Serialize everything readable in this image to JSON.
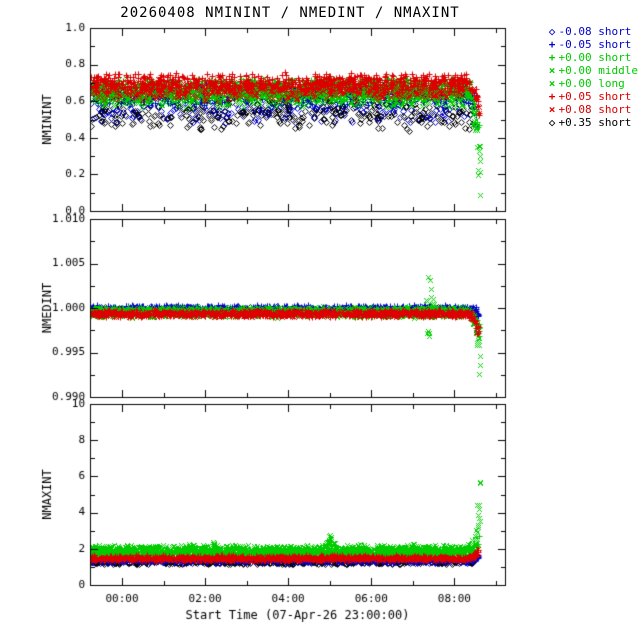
{
  "title": "20260408 NMININT / NMEDINT / NMAXINT",
  "axes": {
    "xlim": [
      -0.77,
      9.22
    ],
    "xticks": [
      0,
      2,
      4,
      6,
      8
    ],
    "xtick_labels": [
      "00:00",
      "02:00",
      "04:00",
      "06:00",
      "08:00"
    ],
    "xminor_step": 1,
    "xlabel": "Start Time (07-Apr-26 23:00:00)"
  },
  "legend": {
    "items": [
      {
        "label": "-0.08 short",
        "color": "#0000cc",
        "symbol": "diamond"
      },
      {
        "label": "-0.05 short",
        "color": "#0000cc",
        "symbol": "plus"
      },
      {
        "label": "+0.00 short",
        "color": "#00cc00",
        "symbol": "plus"
      },
      {
        "label": "+0.00 middle",
        "color": "#00cc00",
        "symbol": "cross"
      },
      {
        "label": "+0.00 long",
        "color": "#00cc00",
        "symbol": "cross"
      },
      {
        "label": "+0.05 short",
        "color": "#dd0000",
        "symbol": "plus"
      },
      {
        "label": "+0.08 short",
        "color": "#dd0000",
        "symbol": "cross"
      },
      {
        "label": "+0.35 short",
        "color": "#000000",
        "symbol": "diamond"
      }
    ]
  },
  "chart_data": [
    {
      "name": "NMININT",
      "type": "scatter",
      "ylabel": "NMININT",
      "ylim": [
        0.0,
        1.0
      ],
      "yticks": [
        0.0,
        0.2,
        0.4,
        0.6,
        0.8,
        1.0
      ],
      "ytick_labels": [
        "0.0",
        "0.2",
        "0.4",
        "0.6",
        "0.8",
        "1.0"
      ],
      "yminor_step": 0.1,
      "series": [
        {
          "name": "-0.08 short",
          "color": "#0000cc",
          "symbol": "diamond",
          "n": 280,
          "xr": [
            -0.75,
            8.55
          ],
          "base": 0.56,
          "noise": 0.05,
          "anomalies": [
            {
              "kind": "ramp",
              "x0": 8.2,
              "x1": 8.55,
              "to": 0.45,
              "pow": 3
            }
          ]
        },
        {
          "name": "+0.35 short",
          "color": "#000000",
          "symbol": "diamond",
          "n": 280,
          "xr": [
            -0.75,
            8.55
          ],
          "base": 0.53,
          "noise": 0.055,
          "anomalies": [
            {
              "kind": "ramp",
              "x0": 8.2,
              "x1": 8.55,
              "to": 0.45,
              "pow": 3
            }
          ]
        },
        {
          "name": "-0.05 short",
          "color": "#0000cc",
          "symbol": "plus",
          "n": 550,
          "xr": [
            -0.75,
            8.58
          ],
          "base": 0.64,
          "noise": 0.035,
          "anomalies": [
            {
              "kind": "ramp",
              "x0": 8.3,
              "x1": 8.58,
              "to": 0.05,
              "pow": 8
            }
          ]
        },
        {
          "name": "+0.00 short",
          "color": "#00cc00",
          "symbol": "plus",
          "n": 650,
          "xr": [
            -0.75,
            8.6
          ],
          "base": 0.67,
          "noise": 0.035,
          "anomalies": [
            {
              "kind": "ramp",
              "x0": 8.25,
              "x1": 8.6,
              "to": 0.3,
              "pow": 4
            }
          ]
        },
        {
          "name": "+0.00 middle",
          "color": "#00cc00",
          "symbol": "cross",
          "n": 650,
          "xr": [
            -0.75,
            8.62
          ],
          "base": 0.63,
          "noise": 0.04,
          "anomalies": [
            {
              "kind": "ramp",
              "x0": 8.25,
              "x1": 8.62,
              "to": 0.02,
              "pow": 2.5
            }
          ]
        },
        {
          "name": "+0.00 long",
          "color": "#00cc00",
          "symbol": "cross",
          "n": 650,
          "xr": [
            -0.75,
            8.62
          ],
          "base": 0.66,
          "noise": 0.04,
          "anomalies": [
            {
              "kind": "ramp",
              "x0": 8.25,
              "x1": 8.62,
              "to": 0.05,
              "pow": 3
            }
          ]
        },
        {
          "name": "+0.05 short",
          "color": "#dd0000",
          "symbol": "plus",
          "n": 650,
          "xr": [
            -0.75,
            8.6
          ],
          "base": 0.7,
          "noise": 0.035,
          "anomalies": [
            {
              "kind": "ramp",
              "x0": 8.25,
              "x1": 8.6,
              "to": 0.5,
              "pow": 3
            }
          ]
        },
        {
          "name": "+0.08 short",
          "color": "#dd0000",
          "symbol": "cross",
          "n": 550,
          "xr": [
            -0.75,
            8.6
          ],
          "base": 0.66,
          "noise": 0.035,
          "anomalies": [
            {
              "kind": "ramp",
              "x0": 8.25,
              "x1": 8.6,
              "to": 0.52,
              "pow": 3
            }
          ]
        }
      ]
    },
    {
      "name": "NMEDINT",
      "type": "scatter",
      "ylabel": "NMEDINT",
      "ylim": [
        0.99,
        1.01
      ],
      "yticks": [
        0.99,
        0.995,
        1.0,
        1.005,
        1.01
      ],
      "ytick_labels": [
        "0.990",
        "0.995",
        "1.000",
        "1.005",
        "1.010"
      ],
      "yminor_step": 0.0025,
      "series": [
        {
          "name": "-0.08 short",
          "color": "#0000cc",
          "symbol": "diamond",
          "n": 280,
          "xr": [
            -0.75,
            8.55
          ],
          "base": 0.9998,
          "noise": 0.00022,
          "anomalies": [
            {
              "kind": "ramp",
              "x0": 8.3,
              "x1": 8.6,
              "to": 0.998,
              "pow": 5
            }
          ]
        },
        {
          "name": "+0.35 short",
          "color": "#000000",
          "symbol": "diamond",
          "n": 280,
          "xr": [
            -0.75,
            8.58
          ],
          "base": 0.9997,
          "noise": 0.00025,
          "anomalies": [
            {
              "kind": "ramp",
              "x0": 8.3,
              "x1": 8.6,
              "to": 0.9915,
              "pow": 5
            }
          ]
        },
        {
          "name": "-0.05 short",
          "color": "#0000cc",
          "symbol": "plus",
          "n": 550,
          "xr": [
            -0.75,
            8.58
          ],
          "base": 1.0,
          "noise": 0.0002,
          "anomalies": [
            {
              "kind": "ramp",
              "x0": 8.3,
              "x1": 8.6,
              "to": 0.9985,
              "pow": 5
            }
          ]
        },
        {
          "name": "+0.00 short",
          "color": "#00cc00",
          "symbol": "plus",
          "n": 650,
          "xr": [
            -0.75,
            8.6
          ],
          "base": 0.9996,
          "noise": 0.0003,
          "anomalies": [
            {
              "kind": "ramp",
              "x0": 8.3,
              "x1": 8.62,
              "to": 0.996,
              "pow": 3
            }
          ]
        },
        {
          "name": "+0.00 middle",
          "color": "#00cc00",
          "symbol": "cross",
          "n": 650,
          "xr": [
            -0.75,
            8.62
          ],
          "base": 0.9995,
          "noise": 0.00035,
          "anomalies": [
            {
              "kind": "spike",
              "x0": 7.28,
              "x1": 7.52,
              "amp": 0.0058,
              "bipolar": true
            },
            {
              "kind": "ramp",
              "x0": 8.3,
              "x1": 8.62,
              "to": 0.9898,
              "pow": 2.5
            }
          ]
        },
        {
          "name": "+0.00 long",
          "color": "#00cc00",
          "symbol": "cross",
          "n": 650,
          "xr": [
            -0.75,
            8.62
          ],
          "base": 0.9996,
          "noise": 0.00035,
          "anomalies": [
            {
              "kind": "ramp",
              "x0": 8.3,
              "x1": 8.62,
              "to": 0.993,
              "pow": 3
            }
          ]
        },
        {
          "name": "+0.05 short",
          "color": "#dd0000",
          "symbol": "plus",
          "n": 650,
          "xr": [
            -0.75,
            8.6
          ],
          "base": 0.9994,
          "noise": 0.00025,
          "anomalies": [
            {
              "kind": "ramp",
              "x0": 8.25,
              "x1": 8.6,
              "to": 0.996,
              "pow": 3
            }
          ]
        },
        {
          "name": "+0.08 short",
          "color": "#dd0000",
          "symbol": "cross",
          "n": 550,
          "xr": [
            -0.75,
            8.6
          ],
          "base": 0.99935,
          "noise": 0.00025,
          "anomalies": [
            {
              "kind": "ramp",
              "x0": 8.25,
              "x1": 8.6,
              "to": 0.9962,
              "pow": 3
            }
          ]
        }
      ]
    },
    {
      "name": "NMAXINT",
      "type": "scatter",
      "ylabel": "NMAXINT",
      "ylim": [
        0,
        10
      ],
      "yticks": [
        0,
        2,
        4,
        6,
        8,
        10
      ],
      "ytick_labels": [
        "0",
        "2",
        "4",
        "6",
        "8",
        "10"
      ],
      "yminor_step": 1,
      "series": [
        {
          "name": "-0.08 short",
          "color": "#0000cc",
          "symbol": "diamond",
          "n": 280,
          "xr": [
            -0.75,
            8.55
          ],
          "base": 1.3,
          "noise": 0.06,
          "anomalies": [
            {
              "kind": "ramp",
              "x0": 8.25,
              "x1": 8.6,
              "to": 1.8,
              "pow": 5
            }
          ]
        },
        {
          "name": "+0.35 short",
          "color": "#000000",
          "symbol": "diamond",
          "n": 280,
          "xr": [
            -0.75,
            8.58
          ],
          "base": 1.25,
          "noise": 0.07,
          "anomalies": [
            {
              "kind": "ramp",
              "x0": 8.25,
              "x1": 8.6,
              "to": 2.6,
              "pow": 5
            }
          ]
        },
        {
          "name": "-0.05 short",
          "color": "#0000cc",
          "symbol": "plus",
          "n": 550,
          "xr": [
            -0.75,
            8.58
          ],
          "base": 1.35,
          "noise": 0.06,
          "anomalies": [
            {
              "kind": "ramp",
              "x0": 8.25,
              "x1": 8.6,
              "to": 1.9,
              "pow": 5
            }
          ]
        },
        {
          "name": "+0.00 short",
          "color": "#00cc00",
          "symbol": "plus",
          "n": 650,
          "xr": [
            -0.75,
            8.6
          ],
          "base": 1.8,
          "noise": 0.16,
          "anomalies": [
            {
              "kind": "ramp",
              "x0": 8.2,
              "x1": 8.62,
              "to": 3.2,
              "pow": 4
            }
          ]
        },
        {
          "name": "+0.00 middle",
          "color": "#00cc00",
          "symbol": "cross",
          "n": 650,
          "xr": [
            -0.75,
            8.62
          ],
          "base": 1.95,
          "noise": 0.2,
          "anomalies": [
            {
              "kind": "spike",
              "x0": 4.85,
              "x1": 5.15,
              "amp": 1.5
            },
            {
              "kind": "spike",
              "x0": 2.1,
              "x1": 2.3,
              "amp": 0.55
            },
            {
              "kind": "ramp",
              "x0": 8.2,
              "x1": 8.62,
              "to": 7.6,
              "pow": 3.5
            }
          ]
        },
        {
          "name": "+0.00 long",
          "color": "#00cc00",
          "symbol": "cross",
          "n": 650,
          "xr": [
            -0.75,
            8.62
          ],
          "base": 1.9,
          "noise": 0.18,
          "anomalies": [
            {
              "kind": "spike",
              "x0": 4.9,
              "x1": 5.1,
              "amp": 1.0
            },
            {
              "kind": "ramp",
              "x0": 8.2,
              "x1": 8.62,
              "to": 5.0,
              "pow": 4
            }
          ]
        },
        {
          "name": "+0.05 short",
          "color": "#dd0000",
          "symbol": "plus",
          "n": 650,
          "xr": [
            -0.75,
            8.6
          ],
          "base": 1.5,
          "noise": 0.09,
          "anomalies": [
            {
              "kind": "ramp",
              "x0": 8.2,
              "x1": 8.6,
              "to": 2.2,
              "pow": 3
            }
          ]
        },
        {
          "name": "+0.08 short",
          "color": "#dd0000",
          "symbol": "cross",
          "n": 550,
          "xr": [
            -0.75,
            8.6
          ],
          "base": 1.45,
          "noise": 0.09,
          "anomalies": [
            {
              "kind": "ramp",
              "x0": 8.2,
              "x1": 8.6,
              "to": 2.1,
              "pow": 3
            }
          ]
        }
      ]
    }
  ]
}
